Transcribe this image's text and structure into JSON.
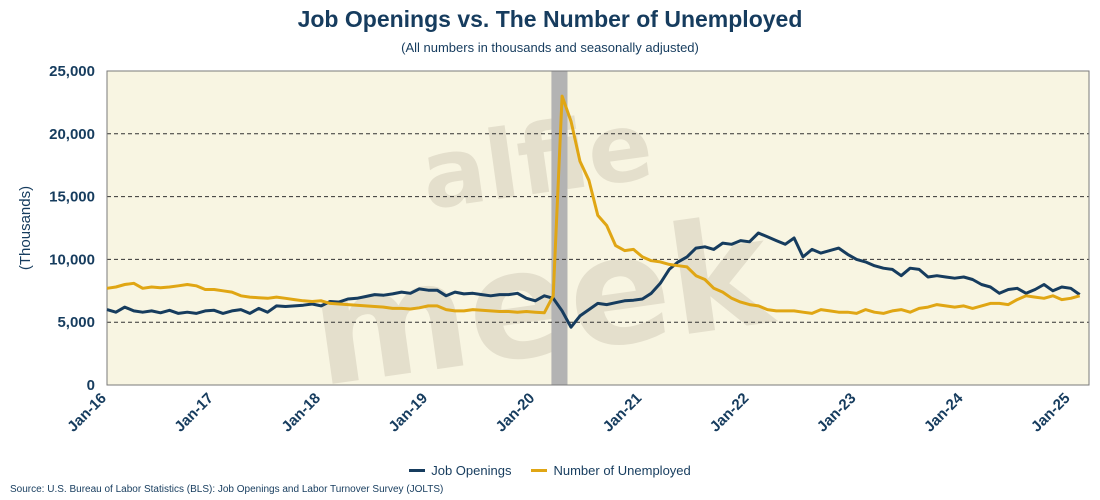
{
  "title": "Job Openings vs. The Number of Unemployed",
  "subtitle": "(All numbers in thousands and seasonally adjusted)",
  "source": "Source: U.S. Bureau of Labor Statistics (BLS): Job Openings and Labor Turnover Survey (JOLTS)",
  "watermark": [
    "alfie",
    "meek"
  ],
  "colors": {
    "job_openings": "#163c5e",
    "unemployed": "#e0a614",
    "plot_bg": "#f8f5e2",
    "recession": "#b3b3b3"
  },
  "chart_data": {
    "type": "line",
    "ylabel": "(Thousands)",
    "ylim": [
      0,
      25000
    ],
    "yticks": [
      0,
      5000,
      10000,
      15000,
      20000,
      25000
    ],
    "ytick_labels": [
      "0",
      "5,000",
      "10,000",
      "15,000",
      "20,000",
      "25,000"
    ],
    "xlim": [
      2016.0,
      2025.17
    ],
    "xticks": [
      2016,
      2017,
      2018,
      2019,
      2020,
      2021,
      2022,
      2023,
      2024,
      2025
    ],
    "xtick_labels": [
      "Jan-16",
      "Jan-17",
      "Jan-18",
      "Jan-19",
      "Jan-20",
      "Jan-21",
      "Jan-22",
      "Jan-23",
      "Jan-24",
      "Jan-25"
    ],
    "grid": "horizontal dashed",
    "recession_shading": [
      2020.15,
      2020.3
    ],
    "legend_position": "bottom",
    "series": [
      {
        "name": "Job Openings",
        "x_start": 2016.0,
        "x_step": 0.08333,
        "values": [
          6000,
          5800,
          6200,
          5900,
          5800,
          5900,
          5750,
          5950,
          5700,
          5800,
          5700,
          5900,
          5950,
          5700,
          5900,
          6000,
          5700,
          6100,
          5800,
          6300,
          6250,
          6300,
          6350,
          6450,
          6300,
          6650,
          6600,
          6850,
          6900,
          7050,
          7200,
          7150,
          7250,
          7400,
          7300,
          7650,
          7550,
          7550,
          7100,
          7400,
          7250,
          7300,
          7200,
          7100,
          7200,
          7200,
          7300,
          6900,
          6700,
          7100,
          6900,
          5900,
          4600,
          5500,
          6000,
          6500,
          6400,
          6550,
          6700,
          6750,
          6850,
          7300,
          8100,
          9200,
          9800,
          10200,
          10900,
          11000,
          10800,
          11300,
          11200,
          11500,
          11400,
          12100,
          11800,
          11500,
          11200,
          11700,
          10200,
          10800,
          10500,
          10700,
          10900,
          10400,
          10000,
          9800,
          9500,
          9300,
          9200,
          8700,
          9300,
          9200,
          8600,
          8700,
          8600,
          8500,
          8600,
          8400,
          8000,
          7800,
          7300,
          7600,
          7700,
          7300,
          7600,
          8000,
          7500,
          7800,
          7700,
          7200
        ]
      },
      {
        "name": "Number of Unemployed",
        "x_start": 2016.0,
        "x_step": 0.08333,
        "values": [
          7700,
          7800,
          8000,
          8100,
          7700,
          7800,
          7750,
          7800,
          7900,
          8000,
          7900,
          7600,
          7600,
          7500,
          7400,
          7100,
          7000,
          6950,
          6900,
          7000,
          6900,
          6800,
          6700,
          6650,
          6700,
          6500,
          6450,
          6400,
          6350,
          6300,
          6250,
          6200,
          6100,
          6100,
          6050,
          6150,
          6300,
          6300,
          6000,
          5900,
          5900,
          6000,
          5950,
          5900,
          5850,
          5850,
          5800,
          5850,
          5800,
          5750,
          7100,
          23000,
          21000,
          17800,
          16300,
          13500,
          12700,
          11100,
          10700,
          10800,
          10200,
          9900,
          9800,
          9600,
          9500,
          9400,
          8700,
          8400,
          7700,
          7400,
          6900,
          6600,
          6400,
          6300,
          6000,
          5900,
          5900,
          5900,
          5800,
          5700,
          6000,
          5900,
          5800,
          5800,
          5700,
          6000,
          5800,
          5700,
          5900,
          6000,
          5800,
          6100,
          6200,
          6400,
          6300,
          6200,
          6300,
          6100,
          6300,
          6500,
          6500,
          6400,
          6800,
          7100,
          7000,
          6900,
          7100,
          6800,
          6900,
          7100
        ]
      }
    ]
  }
}
